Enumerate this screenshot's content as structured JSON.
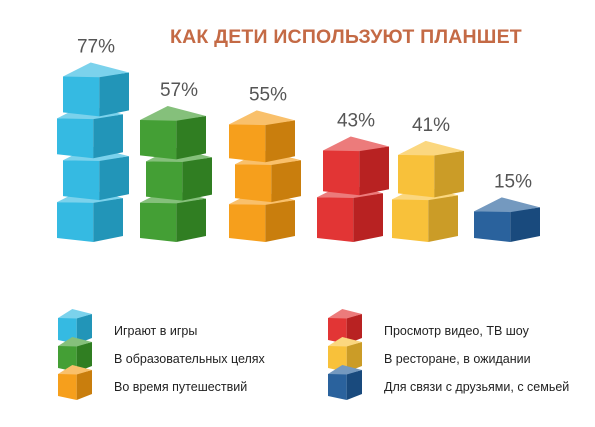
{
  "chart_data": {
    "type": "bar",
    "title": "КАК ДЕТИ ИСПОЛЬЗУЮТ ПЛАНШЕТ",
    "unit": "%",
    "categories": [
      "Играют в игры",
      "В образовательных целях",
      "Во время путешествий",
      "Просмотр видео, ТВ шоу",
      "В ресторане, в ожидании",
      "Для связи с друзьями, с семьей"
    ],
    "values": [
      77,
      57,
      55,
      43,
      41,
      15
    ],
    "value_labels": [
      "77%",
      "57%",
      "55%",
      "43%",
      "41%",
      "15%"
    ],
    "colors": [
      "#2ab6e0",
      "#3a9a2a",
      "#f59a10",
      "#e02a2a",
      "#f8be30",
      "#1f5a98"
    ],
    "legend": [
      {
        "label": "Играют в игры",
        "color": "#2ab6e0"
      },
      {
        "label": "В образовательных целях",
        "color": "#3a9a2a"
      },
      {
        "label": "Во время путешествий",
        "color": "#f59a10"
      },
      {
        "label": "Просмотр видео, ТВ шоу",
        "color": "#e02a2a"
      },
      {
        "label": "В ресторане, в ожидании",
        "color": "#f8be30"
      },
      {
        "label": "Для связи с друзьями, с семьей",
        "color": "#1f5a98"
      }
    ],
    "legend_position": "bottom",
    "grid": false
  }
}
